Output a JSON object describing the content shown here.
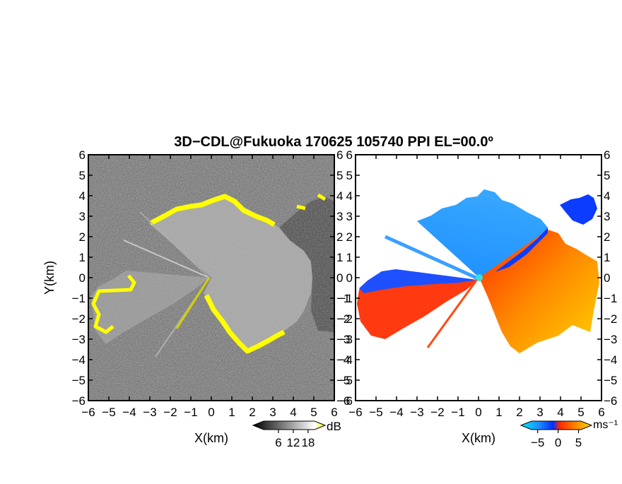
{
  "title": "3D−CDL@Fukuoka 170625 105740 PPI EL=00.0º",
  "chart_data": [
    {
      "type": "heatmap",
      "panel": "left",
      "variable": "dB",
      "xlabel": "X(km)",
      "ylabel": "Y(km)",
      "xlim": [
        -6,
        6
      ],
      "ylim": [
        -6,
        6
      ],
      "x_ticks": [
        "−6",
        "−5",
        "−4",
        "−3",
        "−2",
        "−1",
        "0",
        "1",
        "2",
        "3",
        "4",
        "5",
        "6"
      ],
      "y_ticks": [
        "−6",
        "−5",
        "−4",
        "−3",
        "−2",
        "−1",
        "0",
        "1",
        "2",
        "3",
        "4",
        "5",
        "6"
      ],
      "colorbar": {
        "unit": "dB",
        "tick_values": [
          6,
          12,
          18
        ],
        "tick_labels": [
          "6",
          "12",
          "18"
        ],
        "colors": [
          "#000000",
          "#ffffff",
          "#ffff00"
        ]
      }
    },
    {
      "type": "heatmap",
      "panel": "right",
      "variable": "radial velocity",
      "xlabel": "X(km)",
      "xlim": [
        -6,
        6
      ],
      "ylim": [
        -6,
        6
      ],
      "x_ticks": [
        "−6",
        "−5",
        "−4",
        "−3",
        "−2",
        "−1",
        "0",
        "1",
        "2",
        "3",
        "4",
        "5",
        "6"
      ],
      "y_ticks": [
        "−6",
        "−5",
        "−4",
        "−3",
        "−2",
        "−1",
        "0",
        "1",
        "2",
        "3",
        "4",
        "5",
        "6"
      ],
      "colorbar": {
        "unit": "ms⁻¹",
        "tick_values": [
          -5,
          0,
          5
        ],
        "tick_labels": [
          "−5",
          "0",
          "5"
        ],
        "colors": [
          "#00e0ff",
          "#1e90ff",
          "#0030ff",
          "#ff3000",
          "#ff8000",
          "#ffd000"
        ]
      }
    }
  ]
}
